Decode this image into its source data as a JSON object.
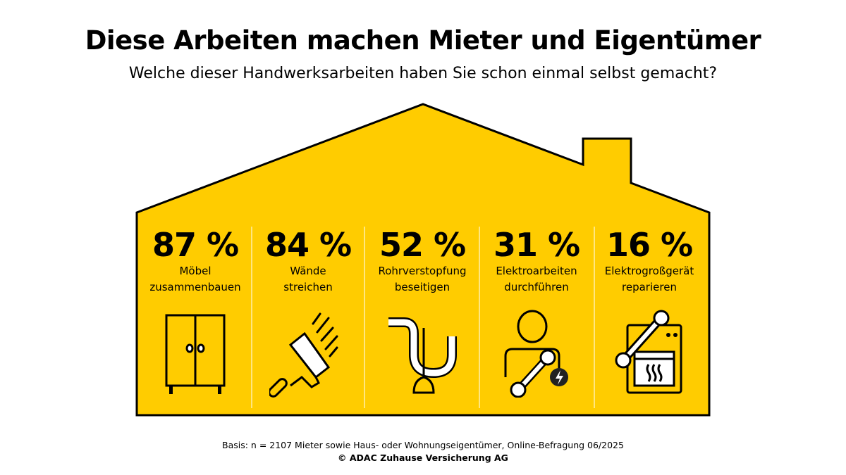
{
  "header": {
    "title": "Diese Arbeiten machen Mieter und Eigentümer",
    "subtitle": "Welche dieser Handwerksarbeiten haben Sie schon einmal selbst gemacht?"
  },
  "colors": {
    "house_fill": "#FFCC00",
    "outline": "#000000",
    "divider": "#FFFFFF"
  },
  "items": [
    {
      "value": "87 %",
      "line1": "Möbel",
      "line2": "zusammenbauen",
      "icon": "wardrobe-icon"
    },
    {
      "value": "84 %",
      "line1": "Wände",
      "line2": "streichen",
      "icon": "paint-roller-icon"
    },
    {
      "value": "52 %",
      "line1": "Rohrverstopfung",
      "line2": "beseitigen",
      "icon": "pipe-plunger-icon"
    },
    {
      "value": "31 %",
      "line1": "Elektroarbeiten",
      "line2": "durchführen",
      "icon": "person-wrench-lightning-icon"
    },
    {
      "value": "16 %",
      "line1": "Elektrogroßgerät",
      "line2": "reparieren",
      "icon": "oven-wrench-icon"
    }
  ],
  "chart_data": {
    "type": "bar",
    "title": "Diese Arbeiten machen Mieter und Eigentümer",
    "subtitle": "Welche dieser Handwerksarbeiten haben Sie schon einmal selbst gemacht?",
    "categories": [
      "Möbel zusammenbauen",
      "Wände streichen",
      "Rohrverstopfung beseitigen",
      "Elektroarbeiten durchführen",
      "Elektrogroßgerät reparieren"
    ],
    "values": [
      87,
      84,
      52,
      31,
      16
    ],
    "unit": "%"
  },
  "footer": {
    "basis": "Basis: n = 2107 Mieter sowie Haus- oder Wohnungseigentümer, Online-Befragung 06/2025",
    "copyright": "© ADAC Zuhause Versicherung AG"
  }
}
